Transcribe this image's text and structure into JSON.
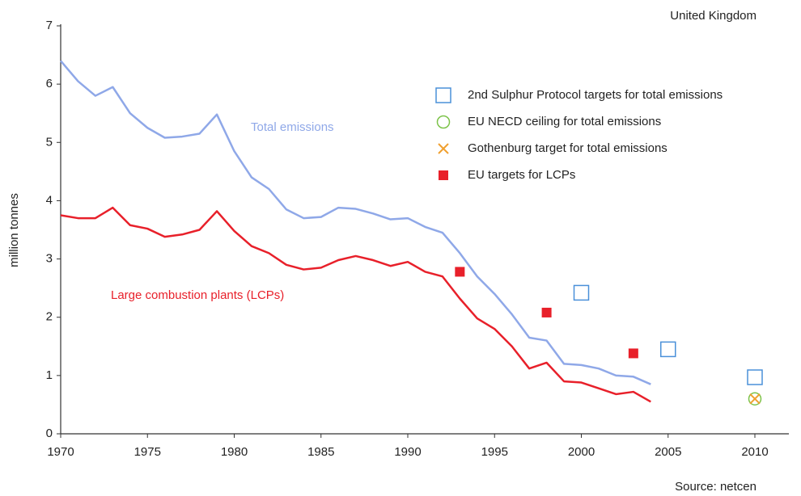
{
  "chart_data": {
    "type": "line",
    "title": "United Kingdom",
    "source": "Source: netcen",
    "y_label": "million tonnes",
    "xlim": [
      1970,
      2010
    ],
    "xticks": [
      1970,
      1975,
      1980,
      1985,
      1990,
      1995,
      2000,
      2005,
      2010
    ],
    "ylim": [
      0,
      7
    ],
    "yticks": [
      0,
      1,
      2,
      3,
      4,
      5,
      6,
      7
    ],
    "grid": false,
    "series": [
      {
        "name": "Total emissions",
        "color": "#8fa8e8",
        "marker": "line",
        "x": [
          1970,
          1971,
          1972,
          1973,
          1974,
          1975,
          1976,
          1977,
          1978,
          1979,
          1980,
          1981,
          1982,
          1983,
          1984,
          1985,
          1986,
          1987,
          1988,
          1989,
          1990,
          1991,
          1992,
          1993,
          1994,
          1995,
          1996,
          1997,
          1998,
          1999,
          2000,
          2001,
          2002,
          2003,
          2004
        ],
        "values": [
          6.4,
          6.05,
          5.8,
          5.95,
          5.5,
          5.25,
          5.08,
          5.1,
          5.15,
          5.48,
          4.85,
          4.4,
          4.2,
          3.85,
          3.7,
          3.72,
          3.88,
          3.86,
          3.78,
          3.68,
          3.7,
          3.55,
          3.45,
          3.1,
          2.7,
          2.4,
          2.05,
          1.65,
          1.6,
          1.2,
          1.18,
          1.12,
          1.0,
          0.98,
          0.85
        ]
      },
      {
        "name": "Large combustion plants (LCPs)",
        "color": "#e8202a",
        "marker": "line",
        "x": [
          1970,
          1971,
          1972,
          1973,
          1974,
          1975,
          1976,
          1977,
          1978,
          1979,
          1980,
          1981,
          1982,
          1983,
          1984,
          1985,
          1986,
          1987,
          1988,
          1989,
          1990,
          1991,
          1992,
          1993,
          1994,
          1995,
          1996,
          1997,
          1998,
          1999,
          2000,
          2001,
          2002,
          2003,
          2004
        ],
        "values": [
          3.75,
          3.7,
          3.7,
          3.88,
          3.58,
          3.52,
          3.38,
          3.42,
          3.5,
          3.82,
          3.48,
          3.22,
          3.1,
          2.9,
          2.82,
          2.85,
          2.98,
          3.05,
          2.98,
          2.88,
          2.95,
          2.78,
          2.7,
          2.32,
          1.98,
          1.8,
          1.5,
          1.12,
          1.22,
          0.9,
          0.88,
          0.78,
          0.68,
          0.72,
          0.55
        ]
      },
      {
        "name": "2nd Sulphur Protocol targets for total emissions",
        "color": "#4a90d9",
        "marker": "open-square",
        "x": [
          2000,
          2005,
          2010
        ],
        "values": [
          2.42,
          1.45,
          0.97
        ]
      },
      {
        "name": "EU NECD ceiling for total emissions",
        "color": "#7dc34a",
        "marker": "circle",
        "x": [
          2010
        ],
        "values": [
          0.6
        ]
      },
      {
        "name": "Gothenburg target for total emissions",
        "color": "#f0a030",
        "marker": "cross",
        "x": [
          2010
        ],
        "values": [
          0.6
        ]
      },
      {
        "name": "EU targets for LCPs",
        "color": "#e8202a",
        "marker": "filled-square",
        "x": [
          1993,
          1998,
          2003
        ],
        "values": [
          2.78,
          2.08,
          1.38
        ]
      }
    ]
  }
}
